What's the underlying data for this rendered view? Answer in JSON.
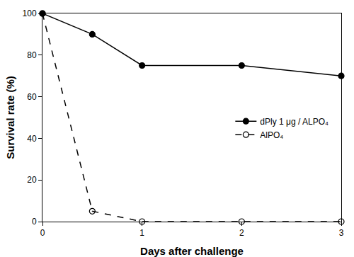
{
  "chart_data": {
    "type": "line",
    "x_label": "Days after challenge",
    "y_label": "Survival rate (%)",
    "x": [
      0,
      0.5,
      1,
      2,
      3
    ],
    "series": [
      {
        "name": "dPly 1 μg / ALPO₄",
        "color": "#000000",
        "marker": "circle",
        "line_style": "solid",
        "values": [
          100,
          90,
          75,
          75,
          70
        ]
      },
      {
        "name": "AlPO₄",
        "color": "#000000",
        "marker": "circle-open",
        "line_style": "dash",
        "values": [
          100,
          5,
          0,
          0,
          0
        ]
      }
    ],
    "xlim": [
      0,
      3
    ],
    "xticks": [
      0,
      1,
      2,
      3
    ],
    "ylim": [
      0,
      100
    ],
    "yticks": [
      0,
      20,
      40,
      60,
      80,
      100
    ],
    "grid": false,
    "legend": "right"
  }
}
